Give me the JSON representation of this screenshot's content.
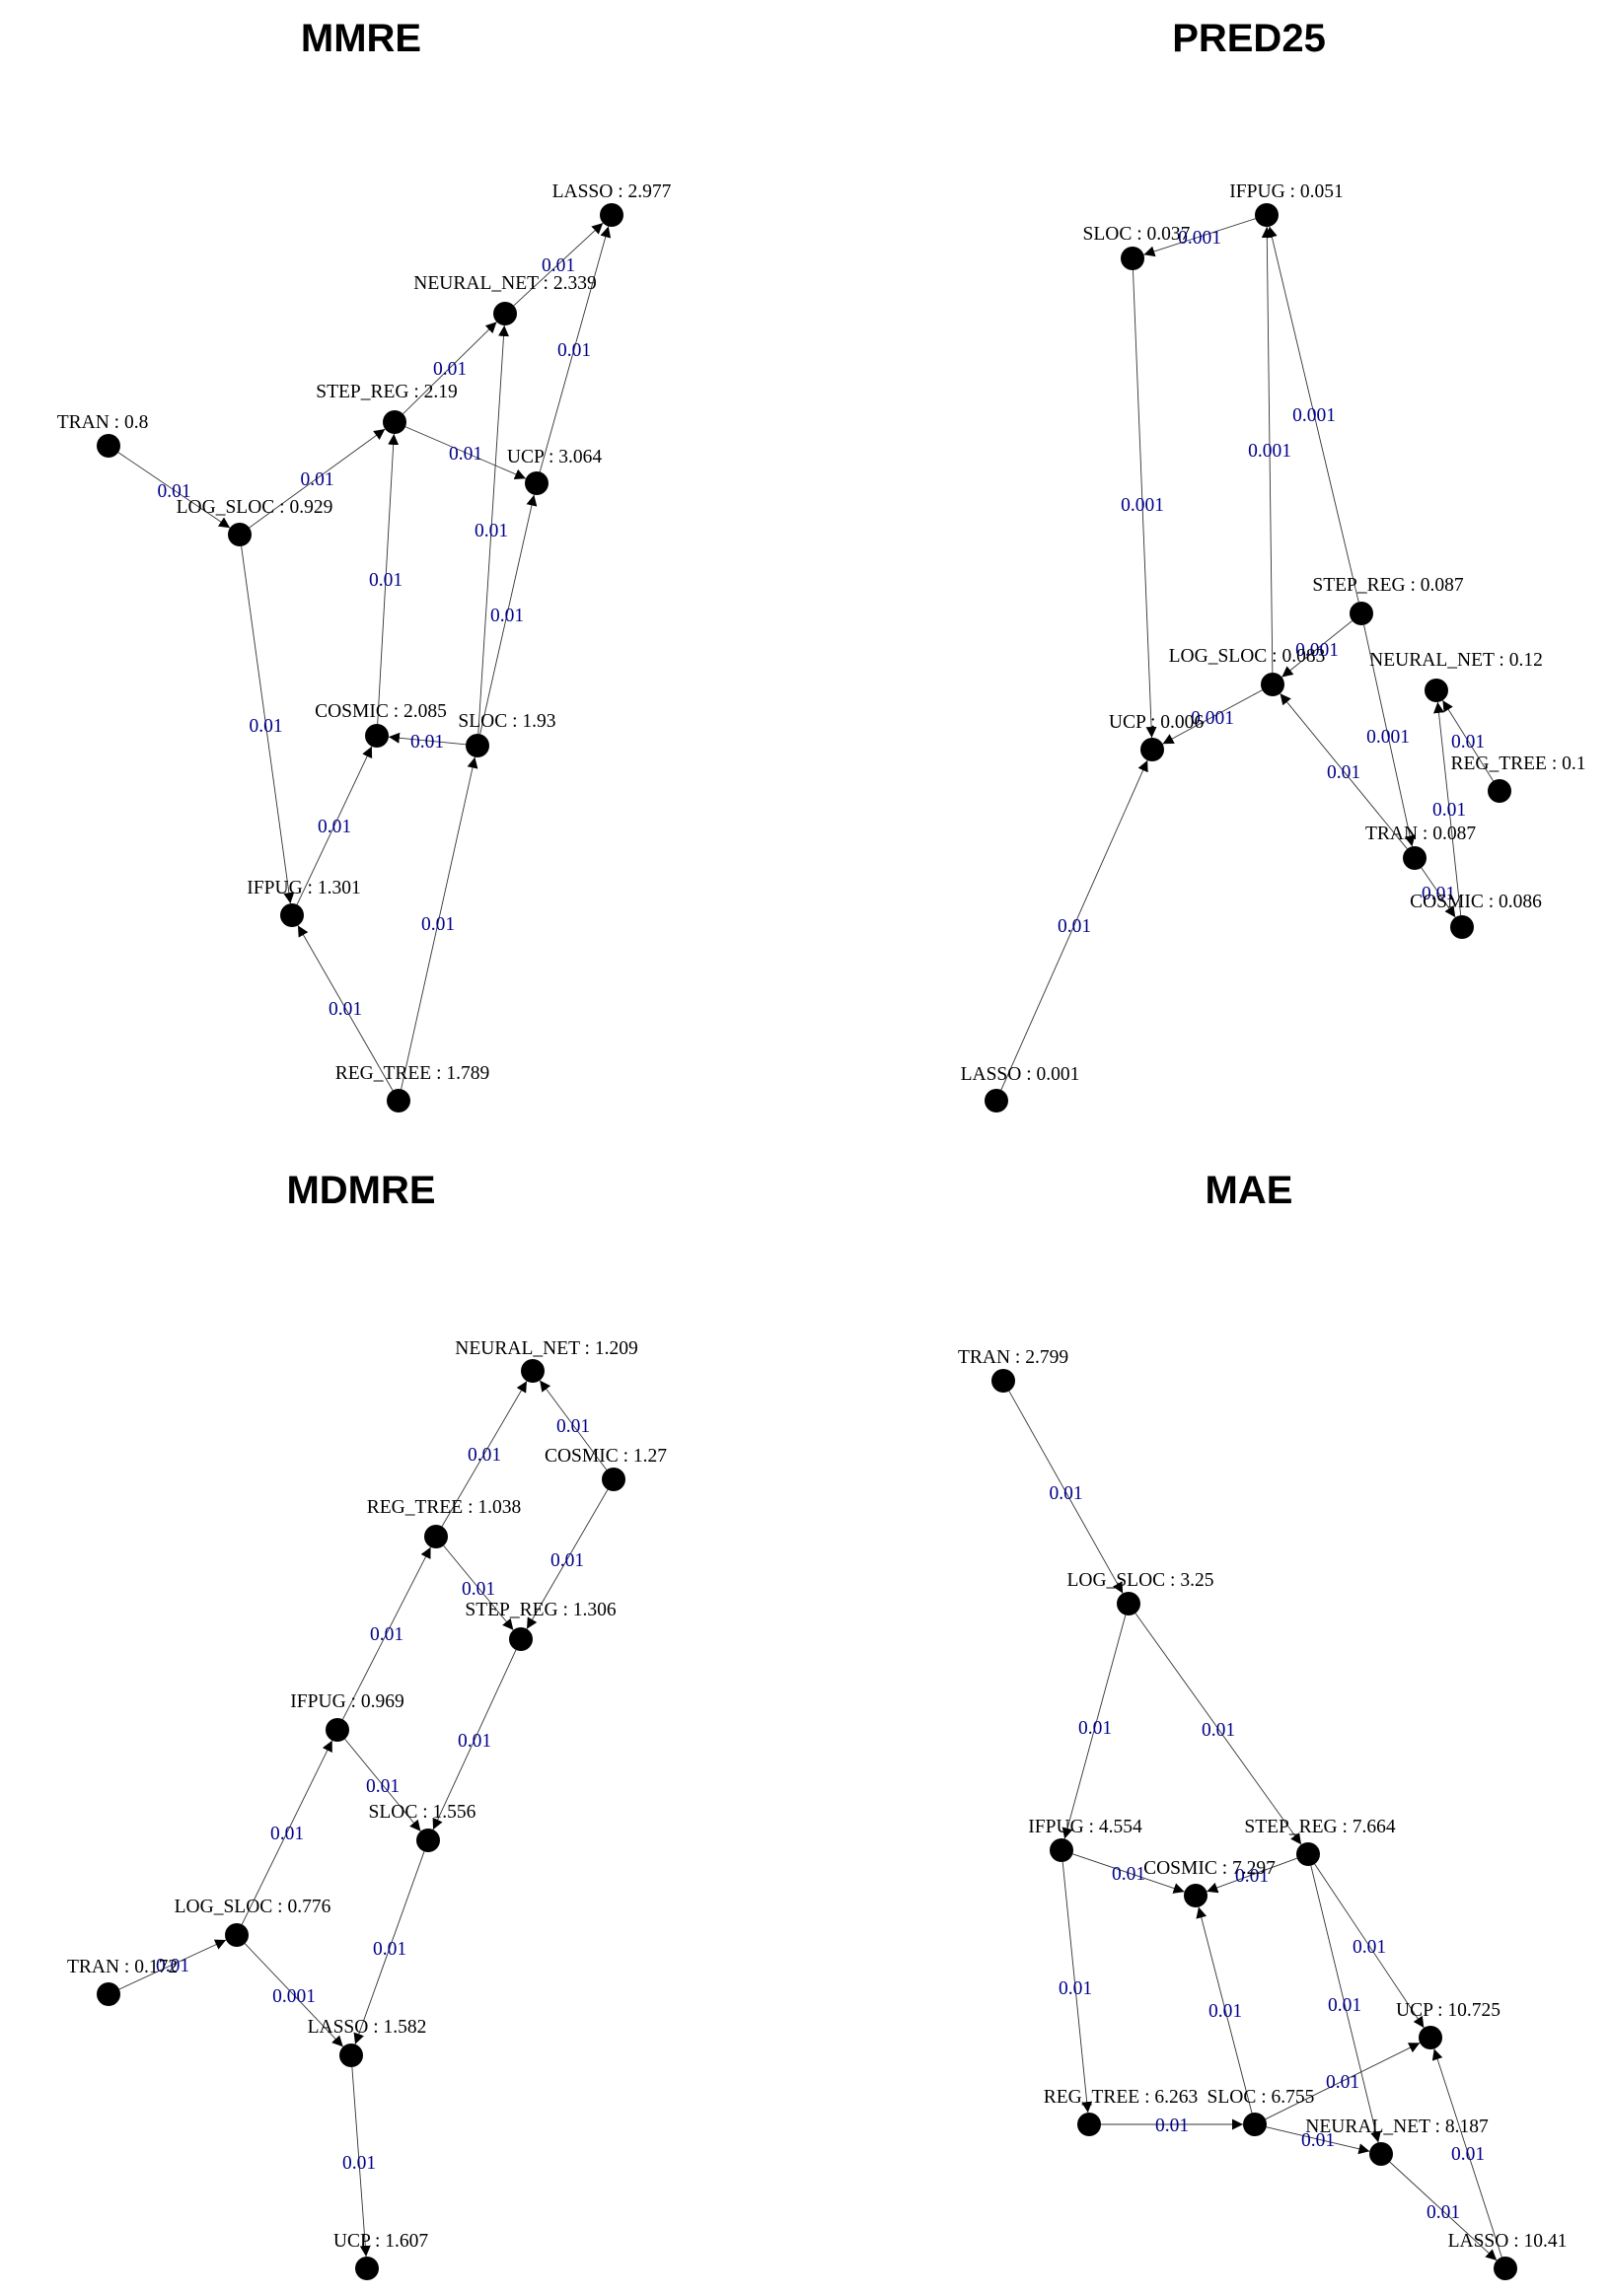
{
  "panels": [
    {
      "title": "MMRE",
      "nodes": [
        {
          "id": "LASSO",
          "label": "LASSO : 2.977"
        },
        {
          "id": "NEURAL_NET",
          "label": "NEURAL_NET : 2.339"
        },
        {
          "id": "STEP_REG",
          "label": "STEP_REG : 2.19"
        },
        {
          "id": "TRAN",
          "label": "TRAN : 0.8"
        },
        {
          "id": "UCP",
          "label": "UCP : 3.064"
        },
        {
          "id": "LOG_SLOC",
          "label": "LOG_SLOC : 0.929"
        },
        {
          "id": "COSMIC",
          "label": "COSMIC : 2.085"
        },
        {
          "id": "SLOC",
          "label": "SLOC : 1.93"
        },
        {
          "id": "IFPUG",
          "label": "IFPUG : 1.301"
        },
        {
          "id": "REG_TREE",
          "label": "REG_TREE : 1.789"
        }
      ],
      "edges": [
        {
          "from": "TRAN",
          "to": "LOG_SLOC",
          "label": "0.01"
        },
        {
          "from": "LOG_SLOC",
          "to": "STEP_REG",
          "label": "0.01"
        },
        {
          "from": "STEP_REG",
          "to": "NEURAL_NET",
          "label": "0.01"
        },
        {
          "from": "NEURAL_NET",
          "to": "LASSO",
          "label": "0.01"
        },
        {
          "from": "UCP",
          "to": "LASSO",
          "label": "0.01"
        },
        {
          "from": "STEP_REG",
          "to": "UCP",
          "label": "0.01"
        },
        {
          "from": "COSMIC",
          "to": "STEP_REG",
          "label": "0.01"
        },
        {
          "from": "SLOC",
          "to": "NEURAL_NET",
          "label": "0.01"
        },
        {
          "from": "SLOC",
          "to": "UCP",
          "label": "0.01"
        },
        {
          "from": "SLOC",
          "to": "COSMIC",
          "label": "0.01"
        },
        {
          "from": "LOG_SLOC",
          "to": "IFPUG",
          "label": "0.01"
        },
        {
          "from": "IFPUG",
          "to": "COSMIC",
          "label": "0.01"
        },
        {
          "from": "REG_TREE",
          "to": "IFPUG",
          "label": "0.01"
        },
        {
          "from": "REG_TREE",
          "to": "SLOC",
          "label": "0.01"
        }
      ]
    },
    {
      "title": "PRED25",
      "nodes": [
        {
          "id": "IFPUG",
          "label": "IFPUG : 0.051"
        },
        {
          "id": "SLOC",
          "label": "SLOC : 0.037"
        },
        {
          "id": "STEP_REG",
          "label": "STEP_REG : 0.087"
        },
        {
          "id": "LOG_SLOC",
          "label": "LOG_SLOC : 0.083"
        },
        {
          "id": "NEURAL_NET",
          "label": "NEURAL_NET : 0.12"
        },
        {
          "id": "UCP",
          "label": "UCP : 0.006"
        },
        {
          "id": "REG_TREE",
          "label": "REG_TREE : 0.1"
        },
        {
          "id": "TRAN",
          "label": "TRAN : 0.087"
        },
        {
          "id": "COSMIC",
          "label": "COSMIC : 0.086"
        },
        {
          "id": "LASSO",
          "label": "LASSO : 0.001"
        }
      ],
      "edges": [
        {
          "from": "IFPUG",
          "to": "SLOC",
          "label": "0.001"
        },
        {
          "from": "SLOC",
          "to": "UCP",
          "label": "0.001"
        },
        {
          "from": "STEP_REG",
          "to": "IFPUG",
          "label": "0.001"
        },
        {
          "from": "LOG_SLOC",
          "to": "IFPUG",
          "label": "0.001"
        },
        {
          "from": "STEP_REG",
          "to": "LOG_SLOC",
          "label": "0.001"
        },
        {
          "from": "LOG_SLOC",
          "to": "UCP",
          "label": "0.001"
        },
        {
          "from": "STEP_REG",
          "to": "TRAN",
          "label": "0.001"
        },
        {
          "from": "REG_TREE",
          "to": "NEURAL_NET",
          "label": "0.01"
        },
        {
          "from": "COSMIC",
          "to": "NEURAL_NET",
          "label": "0.01"
        },
        {
          "from": "TRAN",
          "to": "LOG_SLOC",
          "label": "0.01"
        },
        {
          "from": "TRAN",
          "to": "COSMIC",
          "label": "0.01"
        },
        {
          "from": "LASSO",
          "to": "UCP",
          "label": "0.01"
        }
      ]
    },
    {
      "title": "MDMRE",
      "nodes": [
        {
          "id": "NEURAL_NET",
          "label": "NEURAL_NET : 1.209"
        },
        {
          "id": "COSMIC",
          "label": "COSMIC : 1.27"
        },
        {
          "id": "REG_TREE",
          "label": "REG_TREE : 1.038"
        },
        {
          "id": "STEP_REG",
          "label": "STEP_REG : 1.306"
        },
        {
          "id": "IFPUG",
          "label": "IFPUG : 0.969"
        },
        {
          "id": "SLOC",
          "label": "SLOC : 1.556"
        },
        {
          "id": "LOG_SLOC",
          "label": "LOG_SLOC : 0.776"
        },
        {
          "id": "TRAN",
          "label": "TRAN : 0.172"
        },
        {
          "id": "LASSO",
          "label": "LASSO : 1.582"
        },
        {
          "id": "UCP",
          "label": "UCP : 1.607"
        }
      ],
      "edges": [
        {
          "from": "REG_TREE",
          "to": "NEURAL_NET",
          "label": "0.01"
        },
        {
          "from": "COSMIC",
          "to": "NEURAL_NET",
          "label": "0.01"
        },
        {
          "from": "COSMIC",
          "to": "STEP_REG",
          "label": "0.01"
        },
        {
          "from": "REG_TREE",
          "to": "STEP_REG",
          "label": "0.01"
        },
        {
          "from": "IFPUG",
          "to": "REG_TREE",
          "label": "0.01"
        },
        {
          "from": "STEP_REG",
          "to": "SLOC",
          "label": "0.01"
        },
        {
          "from": "IFPUG",
          "to": "SLOC",
          "label": "0.01"
        },
        {
          "from": "LOG_SLOC",
          "to": "IFPUG",
          "label": "0.01"
        },
        {
          "from": "SLOC",
          "to": "LASSO",
          "label": "0.01"
        },
        {
          "from": "TRAN",
          "to": "LOG_SLOC",
          "label": "0.01"
        },
        {
          "from": "LOG_SLOC",
          "to": "LASSO",
          "label": "0.001"
        },
        {
          "from": "LASSO",
          "to": "UCP",
          "label": "0.01"
        }
      ]
    },
    {
      "title": "MAE",
      "nodes": [
        {
          "id": "TRAN",
          "label": "TRAN : 2.799"
        },
        {
          "id": "LOG_SLOC",
          "label": "LOG_SLOC : 3.25"
        },
        {
          "id": "IFPUG",
          "label": "IFPUG : 4.554"
        },
        {
          "id": "STEP_REG",
          "label": "STEP_REG : 7.664"
        },
        {
          "id": "COSMIC",
          "label": "COSMIC : 7.297"
        },
        {
          "id": "UCP",
          "label": "UCP : 10.725"
        },
        {
          "id": "REG_TREE",
          "label": "REG_TREE : 6.263"
        },
        {
          "id": "SLOC",
          "label": "SLOC : 6.755"
        },
        {
          "id": "NEURAL_NET",
          "label": "NEURAL_NET : 8.187"
        },
        {
          "id": "LASSO",
          "label": "LASSO : 10.41"
        }
      ],
      "edges": [
        {
          "from": "TRAN",
          "to": "LOG_SLOC",
          "label": "0.01"
        },
        {
          "from": "LOG_SLOC",
          "to": "IFPUG",
          "label": "0.01"
        },
        {
          "from": "LOG_SLOC",
          "to": "STEP_REG",
          "label": "0.01"
        },
        {
          "from": "IFPUG",
          "to": "COSMIC",
          "label": "0.01"
        },
        {
          "from": "STEP_REG",
          "to": "COSMIC",
          "label": "0.01"
        },
        {
          "from": "IFPUG",
          "to": "REG_TREE",
          "label": "0.01"
        },
        {
          "from": "STEP_REG",
          "to": "UCP",
          "label": "0.01"
        },
        {
          "from": "STEP_REG",
          "to": "NEURAL_NET",
          "label": "0.01"
        },
        {
          "from": "SLOC",
          "to": "COSMIC",
          "label": "0.01"
        },
        {
          "from": "REG_TREE",
          "to": "SLOC",
          "label": "0.01"
        },
        {
          "from": "SLOC",
          "to": "UCP",
          "label": "0.01"
        },
        {
          "from": "SLOC",
          "to": "NEURAL_NET",
          "label": "0.01"
        },
        {
          "from": "NEURAL_NET",
          "to": "LASSO",
          "label": "0.01"
        },
        {
          "from": "LASSO",
          "to": "UCP",
          "label": "0.01"
        }
      ]
    }
  ]
}
